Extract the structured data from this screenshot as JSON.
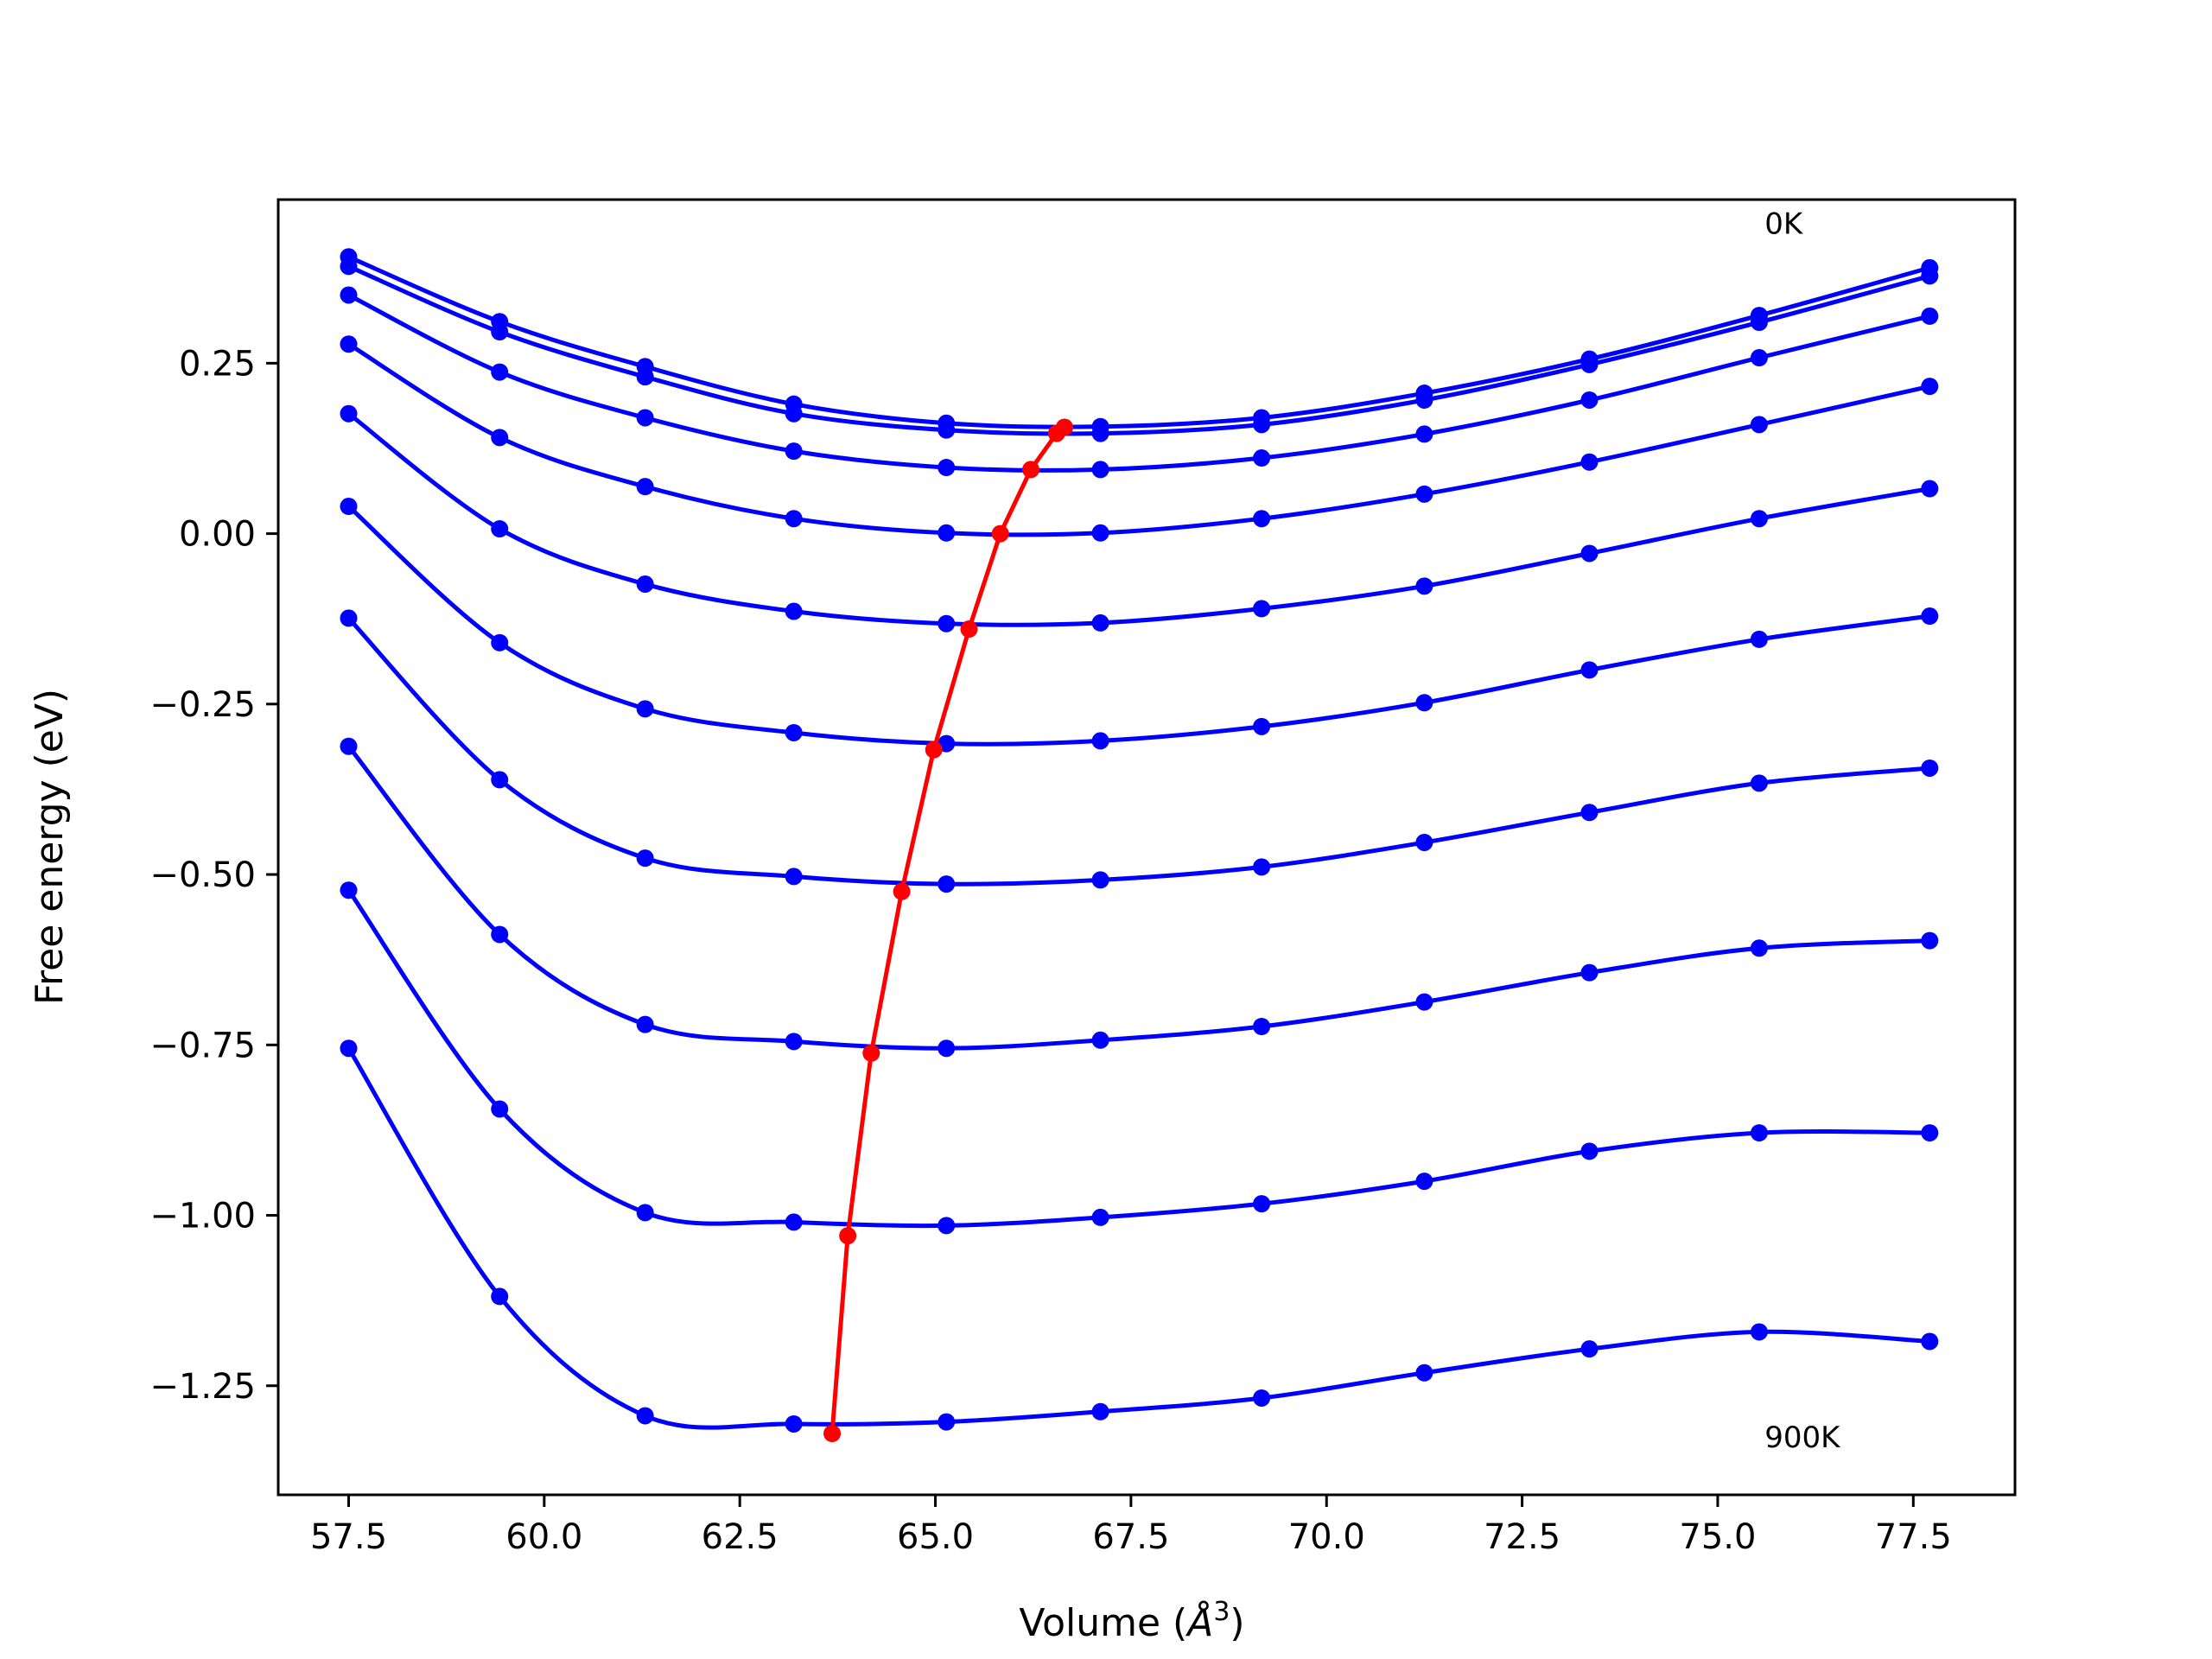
{
  "chart_data": {
    "type": "line",
    "title": "",
    "xlabel": "Volume (",
    "xlabel_unit_base": "Å",
    "xlabel_unit_exp": "3",
    "xlabel_close": ")",
    "ylabel": "Free energy (eV)",
    "xlim": [
      56.6,
      78.8
    ],
    "ylim": [
      -1.41,
      0.49
    ],
    "xticks": [
      57.5,
      60.0,
      62.5,
      65.0,
      67.5,
      70.0,
      72.5,
      75.0,
      77.5
    ],
    "xtick_labels": [
      "57.5",
      "60.0",
      "62.5",
      "65.0",
      "67.5",
      "70.0",
      "72.5",
      "75.0",
      "77.5"
    ],
    "yticks": [
      0.25,
      0.0,
      -0.25,
      -0.5,
      -0.75,
      -1.0,
      -1.25
    ],
    "ytick_labels": [
      "0.25",
      "0.00",
      "−0.25",
      "−0.50",
      "−0.75",
      "−1.00",
      "−1.25"
    ],
    "grid": false,
    "legend": "none",
    "annotations": [
      {
        "text": "0K",
        "x": 75.6,
        "y": 0.44
      },
      {
        "text": "900K",
        "x": 75.6,
        "y": -1.34
      }
    ],
    "colors": {
      "fit": "#0000ff",
      "points": "#0000ff",
      "minimum": "#ff0000"
    },
    "volumes": [
      57.5,
      59.43,
      61.29,
      63.19,
      65.14,
      67.11,
      69.17,
      71.25,
      73.36,
      75.53,
      77.71
    ],
    "series": [
      {
        "energies": [
          0.406,
          0.311,
          0.245,
          0.19,
          0.162,
          0.157,
          0.17,
          0.206,
          0.256,
          0.32,
          0.39
        ]
      },
      {
        "energies": [
          0.392,
          0.296,
          0.23,
          0.176,
          0.152,
          0.147,
          0.16,
          0.196,
          0.248,
          0.31,
          0.378
        ]
      },
      {
        "energies": [
          0.35,
          0.237,
          0.17,
          0.121,
          0.097,
          0.094,
          0.111,
          0.146,
          0.196,
          0.258,
          0.319
        ]
      },
      {
        "energies": [
          0.278,
          0.141,
          0.069,
          0.022,
          0.001,
          0.001,
          0.022,
          0.058,
          0.105,
          0.16,
          0.216
        ]
      },
      {
        "energies": [
          0.176,
          0.007,
          -0.074,
          -0.114,
          -0.132,
          -0.131,
          -0.11,
          -0.077,
          -0.029,
          0.022,
          0.066
        ]
      },
      {
        "energies": [
          0.04,
          -0.16,
          -0.257,
          -0.292,
          -0.308,
          -0.304,
          -0.283,
          -0.248,
          -0.2,
          -0.155,
          -0.121
        ]
      },
      {
        "energies": [
          -0.124,
          -0.361,
          -0.476,
          -0.503,
          -0.514,
          -0.508,
          -0.489,
          -0.453,
          -0.409,
          -0.366,
          -0.344
        ]
      },
      {
        "energies": [
          -0.312,
          -0.588,
          -0.72,
          -0.745,
          -0.755,
          -0.743,
          -0.723,
          -0.687,
          -0.644,
          -0.608,
          -0.597
        ]
      },
      {
        "energies": [
          -0.523,
          -0.844,
          -0.996,
          -1.01,
          -1.015,
          -1.003,
          -0.983,
          -0.95,
          -0.906,
          -0.879,
          -0.879
        ]
      },
      {
        "energies": [
          -0.755,
          -1.119,
          -1.294,
          -1.306,
          -1.303,
          -1.288,
          -1.268,
          -1.231,
          -1.196,
          -1.171,
          -1.185
        ]
      }
    ],
    "minima": {
      "x": [
        66.65,
        66.55,
        66.22,
        65.83,
        65.43,
        64.98,
        64.57,
        64.18,
        63.88,
        63.68
      ],
      "y": [
        0.156,
        0.147,
        0.094,
        0.0,
        -0.14,
        -0.317,
        -0.525,
        -0.762,
        -1.03,
        -1.32
      ]
    }
  }
}
